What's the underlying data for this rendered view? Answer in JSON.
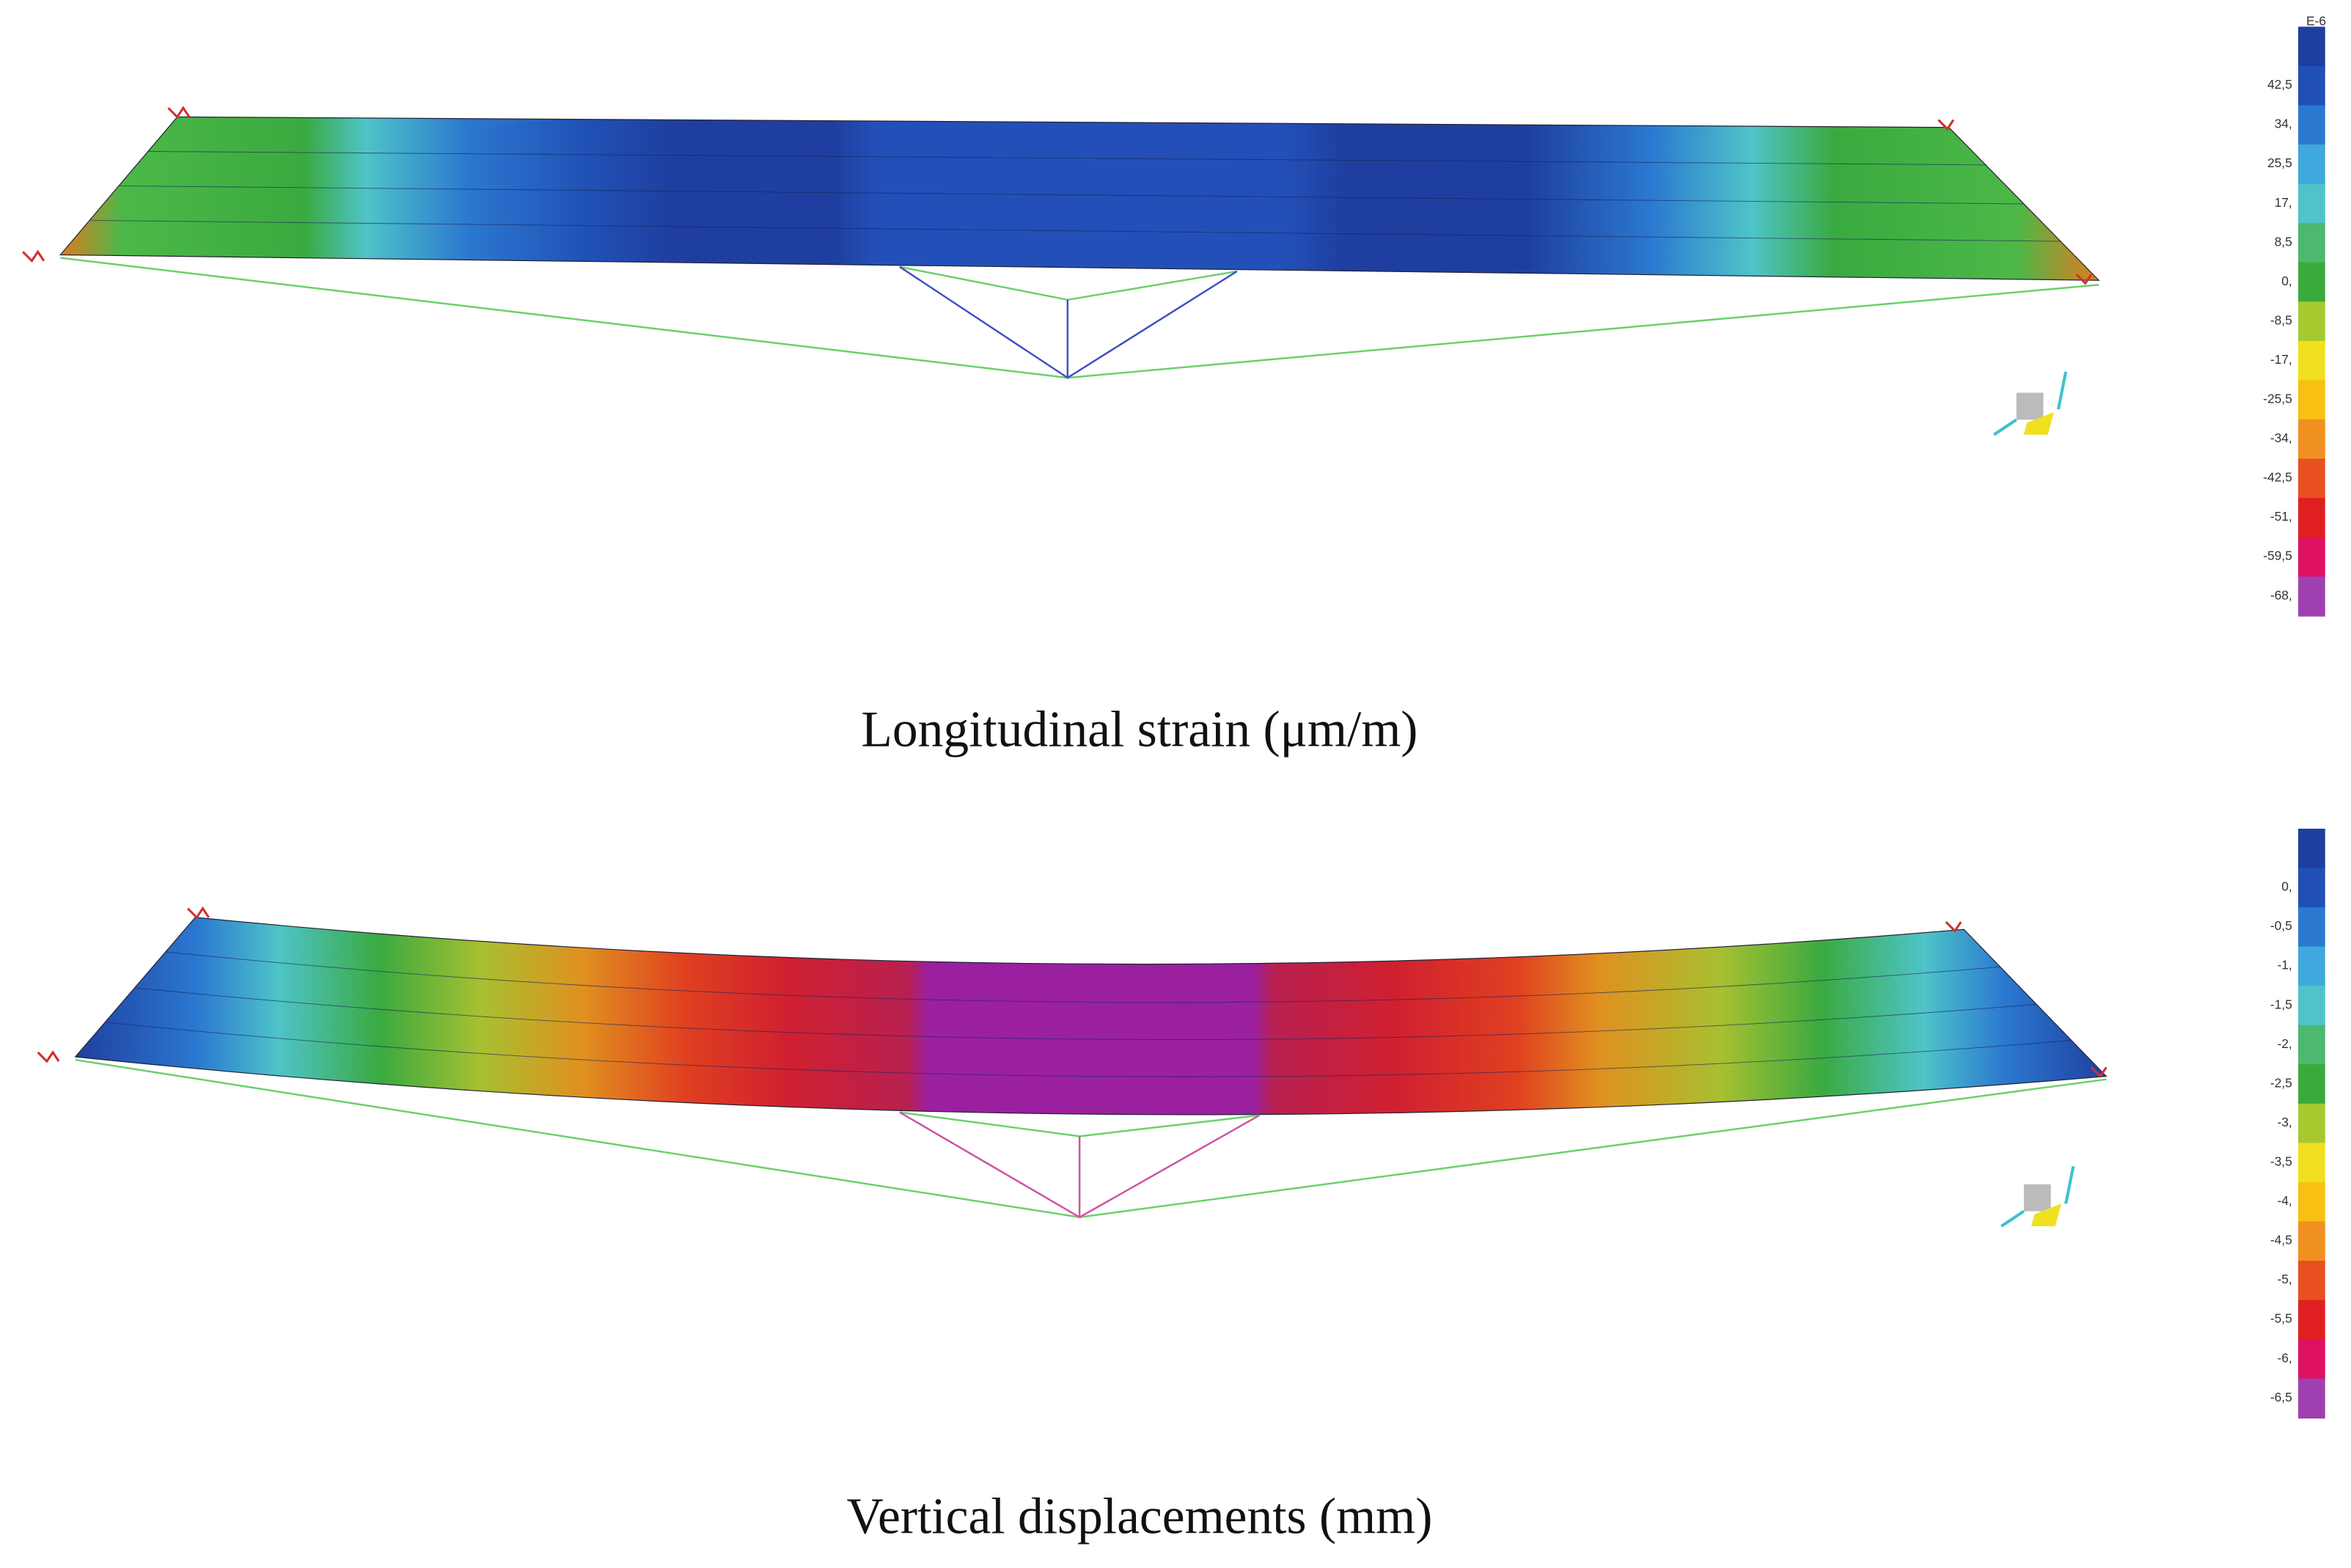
{
  "panels": [
    {
      "caption": "Longitudinal strain (μm/m)",
      "legend": {
        "unit": "E-6",
        "labels": [
          "42,5",
          "34,",
          "25,5",
          "17,",
          "8,5",
          "0,",
          "-8,5",
          "-17,",
          "-25,5",
          "-34,",
          "-42,5",
          "-51,",
          "-59,5",
          "-68,"
        ]
      }
    },
    {
      "caption": "Vertical displacements (mm)",
      "legend": {
        "labels": [
          "0,",
          "-0,5",
          "-1,",
          "-1,5",
          "-2,",
          "-2,5",
          "-3,",
          "-3,5",
          "-4,",
          "-4,5",
          "-5,",
          "-5,5",
          "-6,",
          "-6,5"
        ]
      }
    }
  ]
}
